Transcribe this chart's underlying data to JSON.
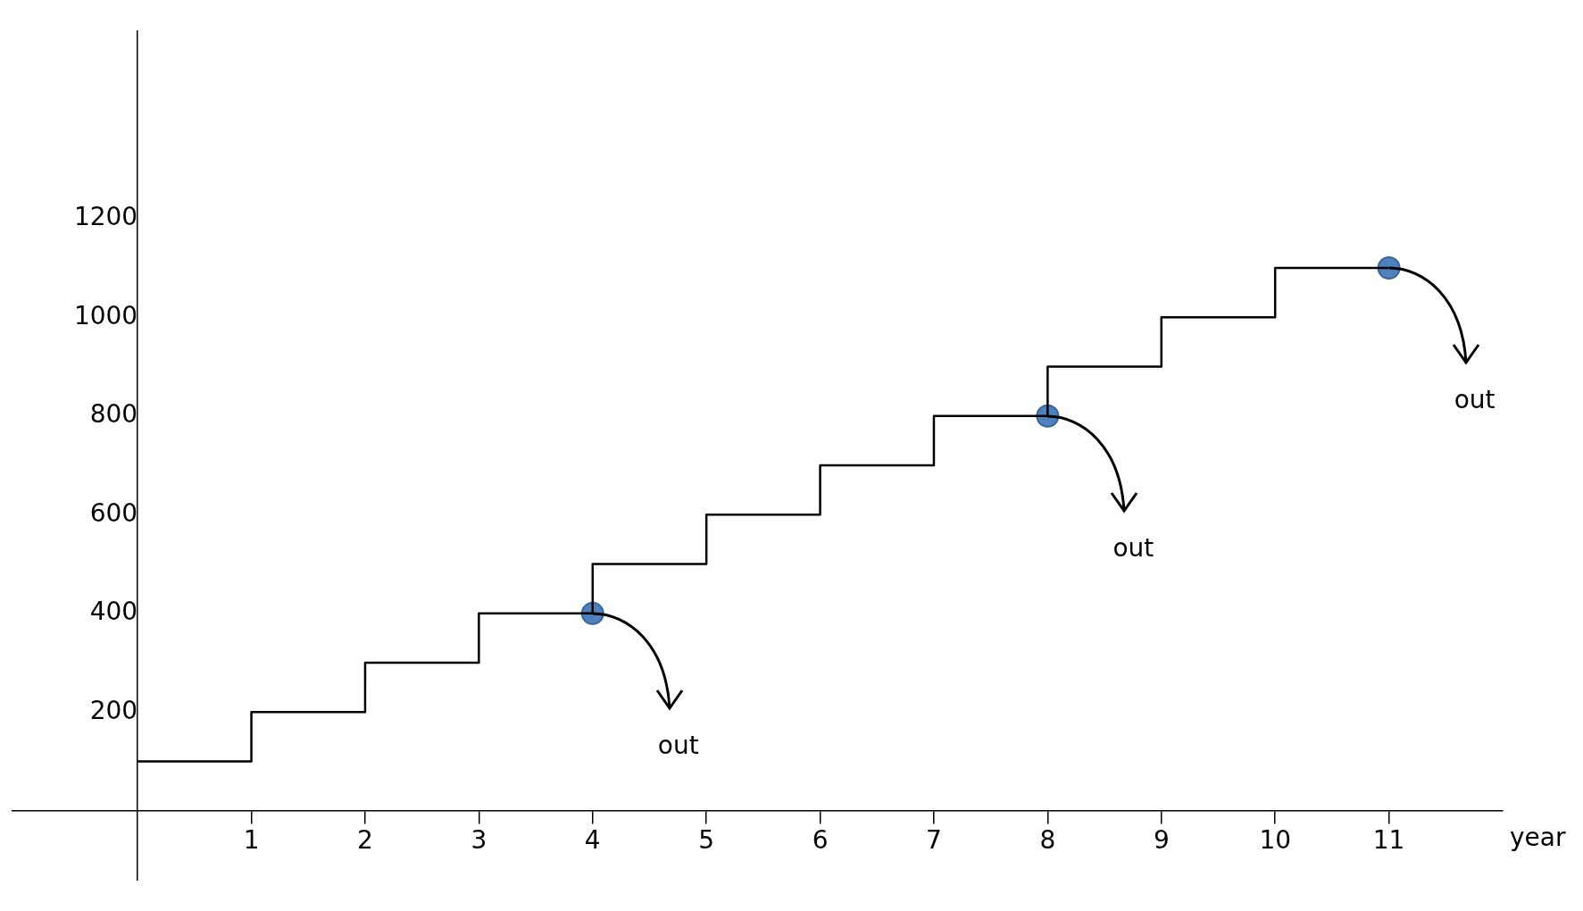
{
  "chart_data": {
    "type": "step",
    "xlabel": "year",
    "xlim": [
      -1.1,
      12
    ],
    "ylim": [
      -140,
      1580
    ],
    "xticks": [
      1,
      2,
      3,
      4,
      5,
      6,
      7,
      8,
      9,
      10,
      11
    ],
    "yticks": [
      200,
      400,
      600,
      800,
      1000,
      1200
    ],
    "grid": false,
    "legend": false,
    "series": [
      {
        "type": "step",
        "color": "#000000",
        "x": [
          0,
          1,
          2,
          3,
          4,
          5,
          6,
          7,
          8,
          9,
          10,
          11
        ],
        "values": [
          100,
          200,
          300,
          400,
          500,
          600,
          700,
          800,
          900,
          1000,
          1100,
          1100
        ]
      },
      {
        "type": "scatter",
        "color": "#4f81bd",
        "marker": "circle",
        "x": [
          4,
          8,
          11
        ],
        "values": [
          400,
          800,
          1100
        ]
      }
    ],
    "annotations": [
      {
        "text": "out",
        "x": 4,
        "y": 400
      },
      {
        "text": "out",
        "x": 8,
        "y": 800
      },
      {
        "text": "out",
        "x": 11,
        "y": 1100
      }
    ]
  }
}
